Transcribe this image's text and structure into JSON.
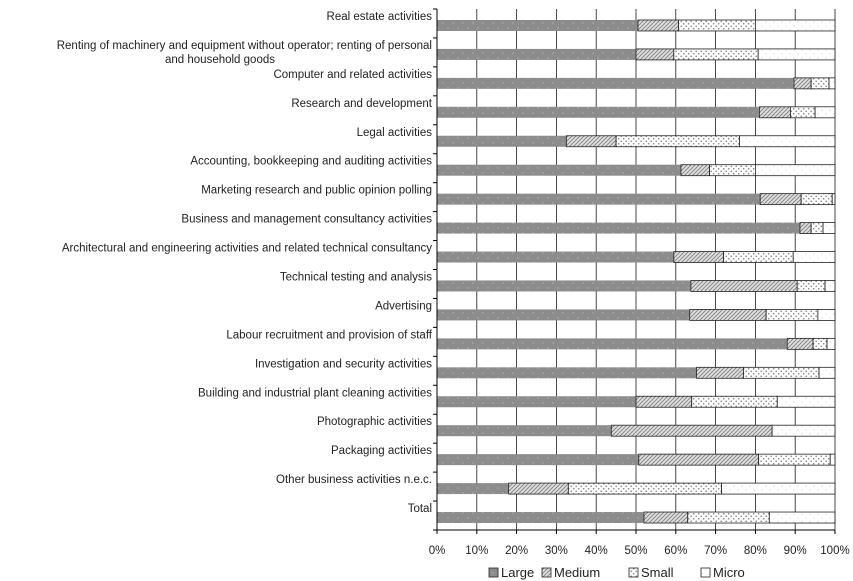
{
  "chart_data": {
    "type": "bar",
    "orientation": "horizontal",
    "stacked": true,
    "percent_stacked": true,
    "categories": [
      "Real estate activities",
      "Renting of machinery and equipment without operator; renting of personal and household goods",
      "Computer and related activities",
      "Research and development",
      "Legal activities",
      "Accounting, bookkeeping and auditing activities",
      "Marketing research and public opinion polling",
      "Business and management consultancy activities",
      "Architectural and engineering activities and related technical consultancy",
      "Technical testing and analysis",
      "Advertising",
      "Labour recruitment and provision of staff",
      "Investigation and security activities",
      "Building and industrial plant cleaning activities",
      "Photographic activities",
      "Packaging activities",
      "Other business activities n.e.c.",
      "Total"
    ],
    "category_lines": [
      [
        "Real estate activities"
      ],
      [
        "Renting of machinery and equipment without operator; renting of personal",
        "and household goods"
      ],
      [
        "Computer and related activities"
      ],
      [
        "Research and development"
      ],
      [
        "Legal activities"
      ],
      [
        "Accounting, bookkeeping and auditing activities"
      ],
      [
        "Marketing research and public opinion polling"
      ],
      [
        "Business and management consultancy activities"
      ],
      [
        "Architectural and engineering activities and related technical consultancy"
      ],
      [
        "Technical testing and analysis"
      ],
      [
        "Advertising"
      ],
      [
        "Labour recruitment and provision of staff"
      ],
      [
        "Investigation and security activities"
      ],
      [
        "Building and industrial plant cleaning activities"
      ],
      [
        "Photographic activities"
      ],
      [
        "Packaging activities"
      ],
      [
        "Other business activities n.e.c."
      ],
      [
        "Total"
      ]
    ],
    "series": [
      {
        "name": "Large",
        "values": [
          50.5,
          50,
          89.7,
          81,
          32.5,
          61.3,
          81.2,
          91.2,
          59.5,
          63.8,
          63.5,
          88,
          65.2,
          50,
          43.8,
          50.7,
          18,
          52
        ]
      },
      {
        "name": "Medium",
        "values": [
          10.2,
          9.5,
          4.3,
          7.8,
          12.5,
          7.2,
          10.3,
          2.8,
          12.5,
          26.7,
          19.2,
          6.5,
          11.8,
          14,
          40.4,
          30.1,
          15,
          11
        ]
      },
      {
        "name": "Small",
        "values": [
          19.3,
          21.2,
          4.5,
          6.2,
          31,
          11.5,
          7.8,
          3,
          17.5,
          7,
          13,
          3.5,
          19,
          21.5,
          0,
          18,
          38.5,
          20.5
        ]
      },
      {
        "name": "Micro",
        "values": [
          20,
          19.3,
          1.5,
          5,
          24,
          20,
          0.7,
          3,
          10.5,
          2.5,
          4.3,
          2,
          4,
          14.5,
          15.8,
          1.2,
          28.5,
          16.5
        ]
      }
    ],
    "x_ticks": [
      "0%",
      "10%",
      "20%",
      "30%",
      "40%",
      "50%",
      "60%",
      "70%",
      "80%",
      "90%",
      "100%"
    ],
    "xlim": [
      0,
      100
    ],
    "grid": true,
    "legend_position": "bottom"
  }
}
